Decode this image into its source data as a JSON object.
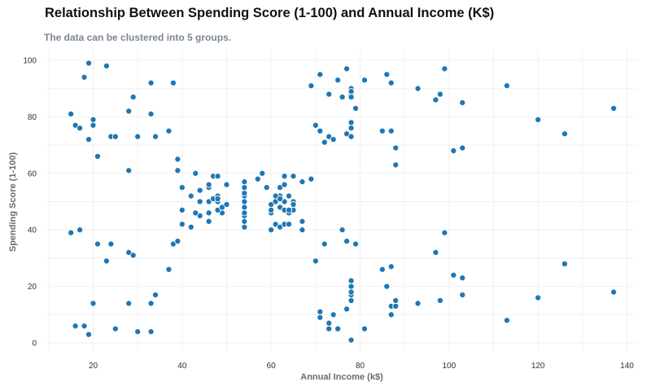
{
  "chart_data": {
    "type": "scatter",
    "title": "Relationship Between Spending Score (1-100) and Annual Income (K$)",
    "subtitle": "The data can be clustered into 5 groups.",
    "xlabel": "Annual Income (k$)",
    "ylabel": "Spending Score (1-100)",
    "xlim": [
      10,
      142
    ],
    "ylim": [
      -5,
      104
    ],
    "xticks": [
      20,
      40,
      60,
      80,
      100,
      120,
      140
    ],
    "yticks": [
      0,
      20,
      40,
      60,
      80,
      100
    ],
    "grid": true,
    "legend": "none",
    "colors": {
      "point": "#1f77b4",
      "point_edge": "#ffffff",
      "grid": "#f1f1f1"
    },
    "series": [
      {
        "x": [
          15,
          16,
          17,
          18,
          19,
          20,
          20,
          21,
          23,
          24,
          25,
          28,
          28,
          29,
          30,
          33,
          33,
          34,
          37,
          38,
          19,
          15,
          16,
          17,
          18,
          19,
          20,
          21,
          23,
          24,
          25,
          28,
          28,
          29,
          30,
          33,
          33,
          34,
          37,
          38,
          39,
          39,
          40,
          40,
          42,
          43,
          43,
          44,
          44,
          46,
          46,
          46,
          47,
          47,
          48,
          48,
          48,
          49,
          49,
          50,
          39,
          40,
          42,
          43,
          44,
          46,
          46,
          47,
          48,
          48,
          49,
          50,
          54,
          54,
          54,
          54,
          54,
          54,
          54,
          54,
          54,
          54,
          57,
          58,
          59,
          60,
          60,
          60,
          61,
          61,
          62,
          62,
          62,
          62,
          63,
          63,
          63,
          63,
          64,
          64,
          64,
          65,
          65,
          65,
          67,
          67,
          67,
          69,
          60,
          61,
          62,
          63,
          64,
          65,
          69,
          70,
          71,
          71,
          72,
          73,
          73,
          74,
          75,
          76,
          77,
          77,
          78,
          78,
          78,
          78,
          78,
          78,
          78,
          79,
          81,
          85,
          86,
          87,
          87,
          88,
          88,
          93,
          97,
          98,
          99,
          101,
          103,
          103,
          113,
          120,
          126,
          137,
          70,
          71,
          71,
          72,
          73,
          73,
          74,
          75,
          76,
          77,
          77,
          78,
          78,
          78,
          78,
          78,
          78,
          79,
          81,
          85,
          86,
          87,
          87,
          87,
          88,
          88,
          93,
          97,
          98,
          99,
          101,
          103,
          103,
          113,
          120,
          126,
          137
        ],
        "y": [
          81,
          77,
          76,
          94,
          72,
          79,
          77,
          66,
          98,
          73,
          73,
          82,
          61,
          87,
          73,
          92,
          81,
          73,
          75,
          92,
          99,
          39,
          6,
          40,
          6,
          3,
          14,
          35,
          29,
          35,
          5,
          32,
          14,
          31,
          4,
          4,
          14,
          17,
          26,
          35,
          61,
          65,
          47,
          55,
          52,
          60,
          60,
          54,
          45,
          50,
          55,
          56,
          59,
          51,
          50,
          52,
          59,
          48,
          46,
          56,
          36,
          42,
          41,
          46,
          50,
          46,
          43,
          51,
          47,
          51,
          48,
          49,
          41,
          43,
          45,
          46,
          48,
          50,
          52,
          53,
          55,
          57,
          58,
          60,
          55,
          40,
          46,
          49,
          42,
          50,
          52,
          41,
          48,
          55,
          42,
          47,
          50,
          59,
          42,
          46,
          52,
          47,
          50,
          59,
          43,
          40,
          57,
          58,
          47,
          52,
          51,
          56,
          47,
          49,
          91,
          77,
          75,
          95,
          71,
          88,
          73,
          72,
          93,
          87,
          97,
          74,
          90,
          88,
          78,
          73,
          76,
          89,
          87,
          83,
          93,
          75,
          95,
          92,
          75,
          63,
          69,
          90,
          86,
          88,
          97,
          68,
          85,
          69,
          91,
          79,
          74,
          83,
          29,
          11,
          9,
          35,
          5,
          7,
          10,
          5,
          40,
          12,
          36,
          22,
          17,
          20,
          18,
          1,
          15,
          35,
          5,
          26,
          20,
          10,
          13,
          27,
          13,
          15,
          14,
          32,
          15,
          39,
          24,
          17,
          23,
          8,
          16,
          28,
          18
        ]
      }
    ]
  }
}
